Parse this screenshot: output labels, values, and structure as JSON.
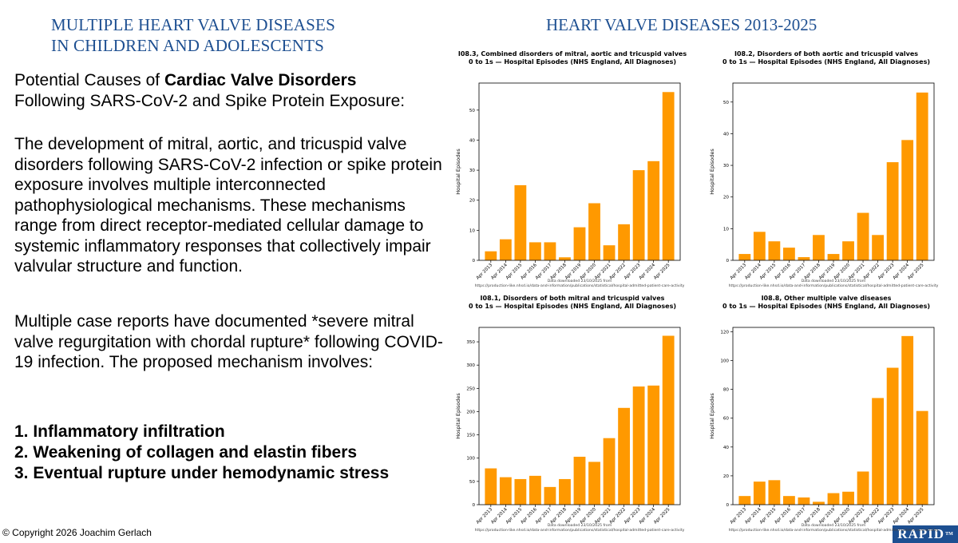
{
  "left_title": {
    "line1": "MULTIPLE HEART VALVE DISEASES",
    "line2": "IN CHILDREN AND ADOLESCENTS"
  },
  "right_title": "HEART VALVE DISEASES 2013-2025",
  "lead": {
    "line1_prefix": "Potential Causes of ",
    "line1_bold": "Cardiac Valve Disorders",
    "line2": "Following SARS-CoV-2 and Spike Protein Exposure:"
  },
  "paragraph1": "The development of mitral, aortic, and tricuspid valve disorders following SARS-CoV-2 infection or spike protein exposure involves multiple interconnected pathophysiological mechanisms. These mechanisms range from direct receptor-mediated cellular damage to systemic inflammatory responses that collectively impair valvular structure and function.",
  "paragraph2": "Multiple case reports have documented *severe mitral valve regurgitation with chordal rupture* following COVID-19 infection. The proposed mechanism involves:",
  "mechanisms": [
    "1. Inflammatory infiltration",
    "2. Weakening of collagen and elastin fibers",
    "3. Eventual rupture under hemodynamic stress"
  ],
  "copyright": "© Copyright 2026 Joachim Gerlach",
  "logo": {
    "text": "RAPID",
    "mark": "TM"
  },
  "bar_color": "#ff9900",
  "chart_data": [
    {
      "type": "bar",
      "title": "I08.3,  Combined disorders of mitral, aortic and tricuspid valves",
      "subtitle": "0 to 1s — Hospital Episodes (NHS England, All Diagnoses)",
      "ylabel": "Hospital Episodes",
      "categories": [
        "Apr 2013",
        "Apr 2014",
        "Apr 2015",
        "Apr 2016",
        "Apr 2017",
        "Apr 2018",
        "Apr 2019",
        "Apr 2020",
        "Apr 2021",
        "Apr 2022",
        "Apr 2023",
        "Apr 2024",
        "Apr 2025"
      ],
      "values": [
        3,
        7,
        25,
        6,
        6,
        1,
        11,
        19,
        5,
        12,
        30,
        33,
        56
      ],
      "ylim": [
        0,
        59
      ],
      "yticks": [
        0,
        10,
        20,
        30,
        40,
        50
      ],
      "footnote1": "Data downloaded 23/10/2025 from",
      "footnote2": "https://production-like.nhsd.io/data-and-information/publications/statistical/hospital-admitted-patient-care-activity"
    },
    {
      "type": "bar",
      "title": "I08.2,  Disorders of both aortic and tricuspid valves",
      "subtitle": "0 to 1s — Hospital Episodes (NHS England, All Diagnoses)",
      "ylabel": "Hospital Episodes",
      "categories": [
        "Apr 2013",
        "Apr 2014",
        "Apr 2015",
        "Apr 2016",
        "Apr 2017",
        "Apr 2018",
        "Apr 2019",
        "Apr 2020",
        "Apr 2021",
        "Apr 2022",
        "Apr 2023",
        "Apr 2024",
        "Apr 2025"
      ],
      "values": [
        2,
        9,
        6,
        4,
        1,
        8,
        2,
        6,
        15,
        8,
        31,
        38,
        53
      ],
      "ylim": [
        0,
        56
      ],
      "yticks": [
        0,
        10,
        20,
        30,
        40,
        50
      ],
      "footnote1": "Data downloaded 23/10/2025 from",
      "footnote2": "https://production-like.nhsd.io/data-and-information/publications/statistical/hospital-admitted-patient-care-activity"
    },
    {
      "type": "bar",
      "title": "I08.1,  Disorders of both mitral and tricuspid valves",
      "subtitle": "0 to 1s — Hospital Episodes (NHS England, All Diagnoses)",
      "ylabel": "Hospital Episodes",
      "categories": [
        "Apr 2013",
        "Apr 2014",
        "Apr 2015",
        "Apr 2016",
        "Apr 2017",
        "Apr 2018",
        "Apr 2019",
        "Apr 2020",
        "Apr 2021",
        "Apr 2022",
        "Apr 2023",
        "Apr 2024",
        "Apr 2025"
      ],
      "values": [
        78,
        59,
        55,
        62,
        38,
        55,
        103,
        92,
        143,
        208,
        254,
        256,
        363
      ],
      "ylim": [
        0,
        381
      ],
      "yticks": [
        0,
        50,
        100,
        150,
        200,
        250,
        300,
        350
      ],
      "footnote1": "Data downloaded 23/10/2025 from",
      "footnote2": "https://production-like.nhsd.io/data-and-information/publications/statistical/hospital-admitted-patient-care-activity"
    },
    {
      "type": "bar",
      "title": "I08.8,  Other multiple valve diseases",
      "subtitle": "0 to 1s — Hospital Episodes (NHS England, All Diagnoses)",
      "ylabel": "Hospital Episodes",
      "categories": [
        "Apr 2013",
        "Apr 2014",
        "Apr 2015",
        "Apr 2016",
        "Apr 2017",
        "Apr 2018",
        "Apr 2019",
        "Apr 2020",
        "Apr 2021",
        "Apr 2022",
        "Apr 2023",
        "Apr 2024",
        "Apr 2025"
      ],
      "values": [
        6,
        16,
        17,
        6,
        5,
        2,
        8,
        9,
        23,
        74,
        95,
        117,
        65
      ],
      "ylim": [
        0,
        123
      ],
      "yticks": [
        0,
        20,
        40,
        60,
        80,
        100,
        120
      ],
      "footnote1": "Data downloaded 23/10/2025 from",
      "footnote2": "https://production-like.nhsd.io/data-and-information/publications/statistical/hospital-admitted-patient-care-activity"
    }
  ]
}
